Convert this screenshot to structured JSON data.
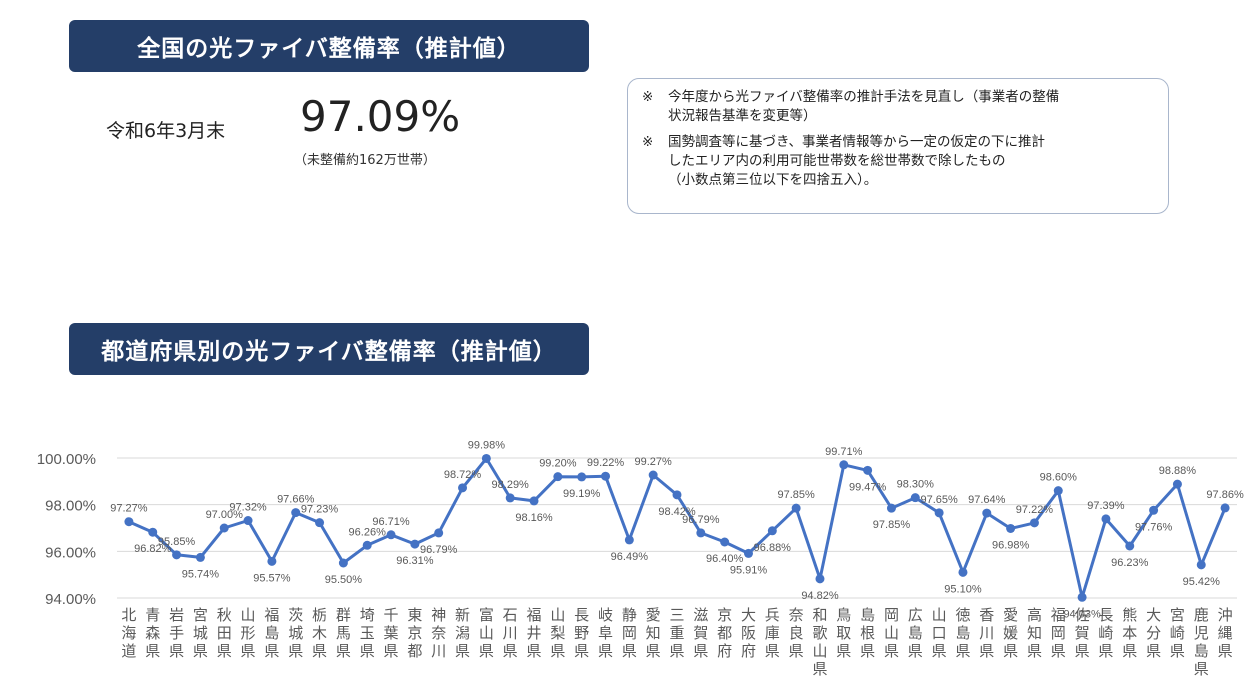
{
  "header": {
    "national_title": "全国の光ファイバ整備率（推計値）",
    "prefecture_title": "都道府県別の光ファイバ整備率（推計値）"
  },
  "summary": {
    "as_of": "令和6年3月末",
    "rate": "97.09%",
    "unserved": "（未整備約162万世帯）"
  },
  "notes": [
    {
      "mark": "※",
      "text": "今年度から光ファイバ整備率の推計手法を見直し（事業者の整備\n状況報告基準を変更等）"
    },
    {
      "mark": "※",
      "text": "国勢調査等に基づき、事業者情報等から一定の仮定の下に推計\nしたエリア内の利用可能世帯数を総世帯数で除したもの\n（小数点第三位以下を四捨五入）。"
    }
  ],
  "colors": {
    "banner": "#243e68",
    "series": "#4472c4",
    "label": "#595959",
    "grid": "#d9d9d9"
  },
  "chart_data": {
    "type": "line",
    "title": "",
    "xlabel": "",
    "ylabel": "",
    "ylim": [
      94,
      100
    ],
    "yticks": [
      "94.00%",
      "96.00%",
      "98.00%",
      "100.00%"
    ],
    "ytick_values": [
      94,
      96,
      98,
      100
    ],
    "grid": true,
    "categories": [
      "北海道",
      "青森県",
      "岩手県",
      "宮城県",
      "秋田県",
      "山形県",
      "福島県",
      "茨城県",
      "栃木県",
      "群馬県",
      "埼玉県",
      "千葉県",
      "東京都",
      "神奈川",
      "新潟県",
      "富山県",
      "石川県",
      "福井県",
      "山梨県",
      "長野県",
      "岐阜県",
      "静岡県",
      "愛知県",
      "三重県",
      "滋賀県",
      "京都府",
      "大阪府",
      "兵庫県",
      "奈良県",
      "和歌山県",
      "鳥取県",
      "島根県",
      "岡山県",
      "広島県",
      "山口県",
      "徳島県",
      "香川県",
      "愛媛県",
      "高知県",
      "福岡県",
      "佐賀県",
      "長崎県",
      "熊本県",
      "大分県",
      "宮崎県",
      "鹿児島県",
      "沖縄県"
    ],
    "values": [
      97.27,
      96.82,
      95.85,
      95.74,
      97.0,
      97.32,
      95.57,
      97.66,
      97.23,
      95.5,
      96.26,
      96.71,
      96.31,
      96.79,
      98.72,
      99.98,
      98.29,
      98.16,
      99.2,
      99.19,
      99.22,
      96.49,
      99.27,
      98.42,
      96.79,
      96.4,
      95.91,
      96.88,
      97.85,
      94.82,
      99.71,
      99.47,
      97.85,
      98.3,
      97.65,
      95.1,
      97.64,
      96.98,
      97.22,
      98.6,
      94.03,
      97.39,
      96.23,
      97.76,
      98.88,
      95.42,
      97.86
    ],
    "data_labels": [
      "97.27%",
      "96.82%",
      "95.85%",
      "95.74%",
      "97.00%",
      "97.32%",
      "95.57%",
      "97.66%",
      "97.23%",
      "95.50%",
      "96.26%",
      "96.71%",
      "96.31%",
      "96.79%",
      "98.72%",
      "99.98%",
      "98.29%",
      "98.16%",
      "99.20%",
      "99.19%",
      "99.22%",
      "96.49%",
      "99.27%",
      "98.42%",
      "96.79%",
      "96.40%",
      "95.91%",
      "96.88%",
      "97.85%",
      "94.82%",
      "99.71%",
      "99.47%",
      "97.85%",
      "98.30%",
      "97.65%",
      "95.10%",
      "97.64%",
      "96.98%",
      "97.22%",
      "98.60%",
      "94.03%",
      "97.39%",
      "96.23%",
      "97.76%",
      "98.88%",
      "95.42%",
      "97.86%"
    ]
  }
}
